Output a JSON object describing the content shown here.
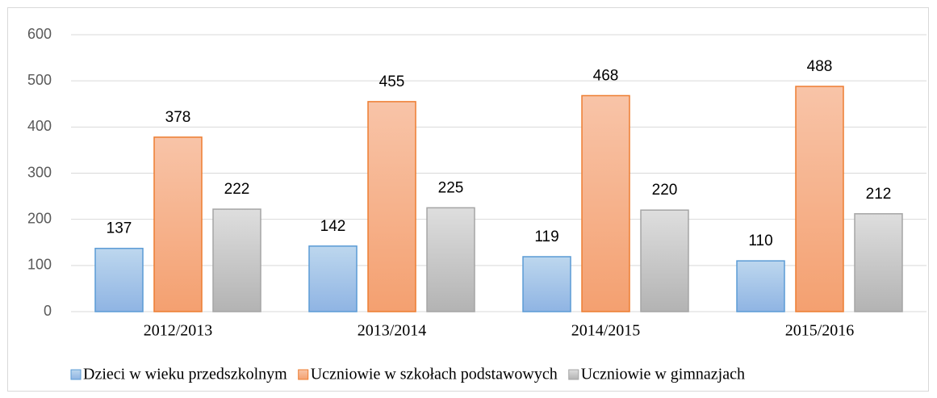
{
  "chart_data": {
    "type": "bar",
    "categories": [
      "2012/2013",
      "2013/2014",
      "2014/2015",
      "2015/2016"
    ],
    "series": [
      {
        "name": "Dzieci w wieku przedszkolnym",
        "color": "#5b9bd5",
        "values": [
          137,
          142,
          119,
          110
        ]
      },
      {
        "name": "Uczniowie w szkołach podstawowych",
        "color": "#ed7d31",
        "values": [
          378,
          455,
          468,
          488
        ]
      },
      {
        "name": "Uczniowie w gimnazjach",
        "color": "#a5a5a5",
        "values": [
          222,
          225,
          220,
          212
        ]
      }
    ],
    "ylim": [
      0,
      600
    ],
    "yticks": [
      0,
      100,
      200,
      300,
      400,
      500,
      600
    ],
    "grid": true,
    "legend": "bottom"
  }
}
